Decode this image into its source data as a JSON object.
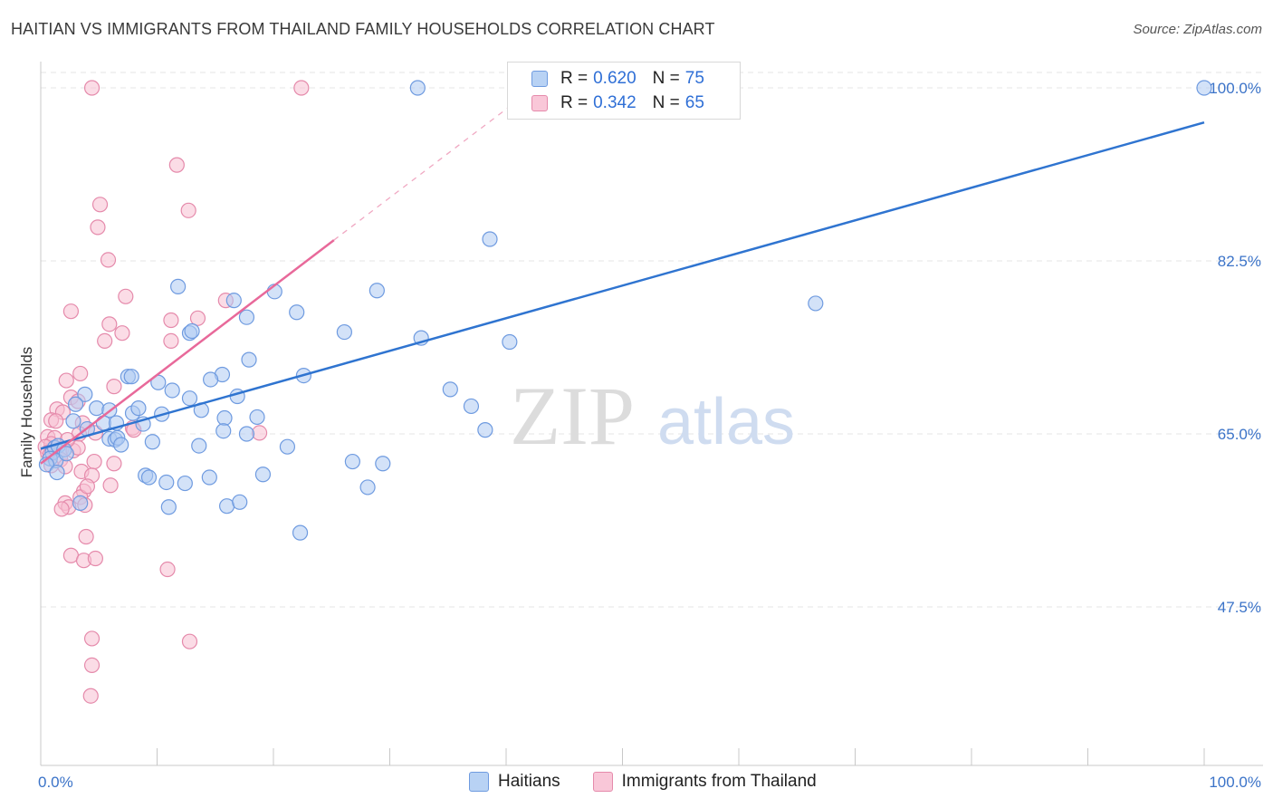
{
  "title": "HAITIAN VS IMMIGRANTS FROM THAILAND FAMILY HOUSEHOLDS CORRELATION CHART",
  "source": "Source: ZipAtlas.com",
  "watermark": {
    "zip": "ZIP",
    "atlas": "atlas"
  },
  "legend_top": [
    {
      "r_label": "R =",
      "r_value": "0.620",
      "n_label": "N =",
      "n_value": "75"
    },
    {
      "r_label": "R =",
      "r_value": "0.342",
      "n_label": "N =",
      "n_value": "65"
    }
  ],
  "legend_bottom": [
    "Haitians",
    "Immigrants from Thailand"
  ],
  "colors": {
    "blue_fill": "#aecbf2",
    "blue_stroke": "#6f9be0",
    "blue_line": "#2f74d0",
    "pink_fill": "#f7bfd2",
    "pink_stroke": "#e58aab",
    "pink_line": "#e8699a",
    "tick_text": "#3b73c8",
    "grid": "#e6e6e6"
  },
  "chart_data": {
    "type": "scatter",
    "title": "HAITIAN VS IMMIGRANTS FROM THAILAND FAMILY HOUSEHOLDS CORRELATION CHART",
    "xlabel": "",
    "ylabel": "Family Households",
    "xlim": [
      0,
      100
    ],
    "ylim": [
      31,
      101.5
    ],
    "x_tick_labels": [
      "0.0%",
      "100.0%"
    ],
    "y_ticks": [
      47.5,
      65.0,
      82.5,
      100.0
    ],
    "y_tick_labels": [
      "47.5%",
      "65.0%",
      "82.5%",
      "100.0%"
    ],
    "grid": true,
    "series": [
      {
        "name": "Haitians",
        "R": 0.62,
        "N": 75,
        "trend": {
          "x0": 0,
          "y0": 63.5,
          "x1": 100,
          "y1": 96.5
        },
        "points": [
          [
            32.4,
            100
          ],
          [
            100,
            100
          ],
          [
            38.6,
            84.7
          ],
          [
            66.6,
            78.2
          ],
          [
            11.8,
            79.9
          ],
          [
            16.6,
            78.5
          ],
          [
            20.1,
            79.4
          ],
          [
            22.0,
            77.3
          ],
          [
            17.7,
            76.8
          ],
          [
            28.9,
            79.5
          ],
          [
            12.8,
            75.2
          ],
          [
            13.0,
            75.4
          ],
          [
            26.1,
            75.3
          ],
          [
            32.7,
            74.7
          ],
          [
            40.3,
            74.3
          ],
          [
            17.9,
            72.5
          ],
          [
            7.5,
            70.8
          ],
          [
            7.8,
            70.8
          ],
          [
            15.6,
            71.0
          ],
          [
            14.6,
            70.5
          ],
          [
            22.6,
            70.9
          ],
          [
            10.1,
            70.2
          ],
          [
            11.3,
            69.4
          ],
          [
            35.2,
            69.5
          ],
          [
            12.8,
            68.6
          ],
          [
            16.9,
            68.8
          ],
          [
            3.8,
            69.0
          ],
          [
            4.8,
            67.6
          ],
          [
            5.9,
            67.4
          ],
          [
            7.9,
            67.1
          ],
          [
            8.4,
            67.6
          ],
          [
            10.4,
            67.0
          ],
          [
            13.8,
            67.4
          ],
          [
            37.0,
            67.8
          ],
          [
            3.0,
            68.0
          ],
          [
            2.8,
            66.3
          ],
          [
            5.4,
            66.1
          ],
          [
            6.5,
            66.1
          ],
          [
            15.8,
            66.6
          ],
          [
            18.6,
            66.7
          ],
          [
            15.7,
            65.3
          ],
          [
            17.7,
            65.0
          ],
          [
            38.2,
            65.4
          ],
          [
            5.9,
            64.5
          ],
          [
            6.4,
            64.4
          ],
          [
            6.6,
            64.6
          ],
          [
            9.6,
            64.2
          ],
          [
            13.6,
            63.8
          ],
          [
            21.2,
            63.7
          ],
          [
            1.0,
            63.1
          ],
          [
            1.2,
            63.6
          ],
          [
            1.5,
            63.8
          ],
          [
            2.0,
            63.4
          ],
          [
            0.8,
            62.5
          ],
          [
            1.3,
            62.3
          ],
          [
            0.5,
            61.9
          ],
          [
            1.4,
            61.1
          ],
          [
            26.8,
            62.2
          ],
          [
            29.4,
            62.0
          ],
          [
            9.0,
            60.8
          ],
          [
            9.3,
            60.6
          ],
          [
            10.8,
            60.1
          ],
          [
            12.4,
            60.0
          ],
          [
            14.5,
            60.6
          ],
          [
            19.1,
            60.9
          ],
          [
            28.1,
            59.6
          ],
          [
            3.4,
            58.0
          ],
          [
            11.0,
            57.6
          ],
          [
            16.0,
            57.7
          ],
          [
            17.1,
            58.1
          ],
          [
            22.3,
            55.0
          ],
          [
            2.2,
            63.0
          ],
          [
            6.9,
            63.9
          ],
          [
            4.0,
            65.5
          ],
          [
            8.8,
            66.0
          ]
        ]
      },
      {
        "name": "Immigrants from Thailand",
        "R": 0.342,
        "N": 65,
        "trend": {
          "x0": 0,
          "y0": 62.0,
          "x1": 25.2,
          "y1": 84.6
        },
        "extrapolated": {
          "x0": 25.2,
          "y0": 84.6,
          "x1": 40.4,
          "y1": 98.2
        },
        "points": [
          [
            4.4,
            100
          ],
          [
            22.4,
            100
          ],
          [
            11.7,
            92.2
          ],
          [
            5.1,
            88.2
          ],
          [
            12.7,
            87.6
          ],
          [
            4.9,
            85.9
          ],
          [
            5.8,
            82.6
          ],
          [
            7.3,
            78.9
          ],
          [
            2.6,
            77.4
          ],
          [
            11.2,
            76.5
          ],
          [
            13.5,
            76.7
          ],
          [
            5.9,
            76.1
          ],
          [
            7.0,
            75.2
          ],
          [
            11.2,
            74.4
          ],
          [
            5.5,
            74.4
          ],
          [
            15.9,
            78.5
          ],
          [
            3.4,
            71.1
          ],
          [
            2.2,
            70.4
          ],
          [
            6.3,
            69.8
          ],
          [
            2.6,
            68.7
          ],
          [
            3.2,
            68.3
          ],
          [
            1.4,
            67.5
          ],
          [
            1.9,
            67.2
          ],
          [
            0.9,
            66.4
          ],
          [
            1.3,
            66.3
          ],
          [
            3.6,
            66.1
          ],
          [
            7.9,
            65.6
          ],
          [
            8.0,
            65.4
          ],
          [
            3.3,
            65.0
          ],
          [
            0.6,
            64.7
          ],
          [
            1.2,
            64.6
          ],
          [
            0.9,
            64.0
          ],
          [
            0.4,
            63.7
          ],
          [
            1.8,
            63.5
          ],
          [
            2.8,
            63.3
          ],
          [
            3.2,
            63.6
          ],
          [
            0.6,
            63.1
          ],
          [
            0.8,
            62.9
          ],
          [
            1.7,
            62.4
          ],
          [
            4.6,
            62.2
          ],
          [
            0.9,
            61.8
          ],
          [
            2.1,
            61.7
          ],
          [
            3.5,
            61.2
          ],
          [
            4.4,
            60.8
          ],
          [
            6.0,
            59.8
          ],
          [
            3.7,
            59.2
          ],
          [
            3.4,
            58.6
          ],
          [
            2.1,
            58.0
          ],
          [
            2.4,
            57.6
          ],
          [
            1.8,
            57.4
          ],
          [
            3.8,
            57.8
          ],
          [
            3.9,
            54.6
          ],
          [
            2.6,
            52.7
          ],
          [
            3.7,
            52.2
          ],
          [
            4.7,
            52.4
          ],
          [
            10.9,
            51.3
          ],
          [
            6.3,
            62.0
          ],
          [
            4.0,
            59.7
          ],
          [
            4.7,
            65.1
          ],
          [
            4.4,
            44.3
          ],
          [
            12.8,
            44.0
          ],
          [
            4.4,
            41.6
          ],
          [
            4.3,
            38.5
          ],
          [
            18.8,
            65.1
          ],
          [
            2.3,
            64.4
          ]
        ]
      }
    ]
  }
}
